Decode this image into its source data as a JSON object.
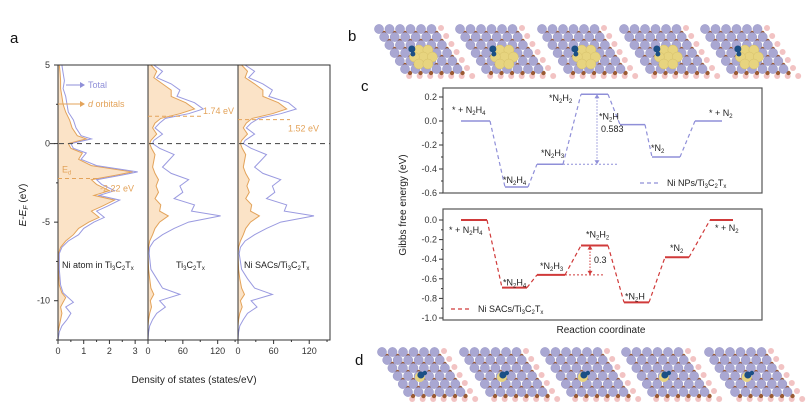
{
  "panel_letters": {
    "a": "a",
    "b": "b",
    "c": "c",
    "d": "d"
  },
  "chart_data": [
    {
      "id": "dos",
      "type": "area",
      "title": "",
      "ylabel": "E-E_F (eV)",
      "ylabel_main": "E-E",
      "ylabel_sub": "F",
      "ylabel_unit": " (eV)",
      "xlabel": "Density of states (states/eV)",
      "ylim": [
        -12.5,
        5
      ],
      "yticks": [
        5,
        0,
        -5,
        -10
      ],
      "fermi_level": 0,
      "legend": [
        {
          "name": "Total",
          "color": "#8f8fd8",
          "style": "line"
        },
        {
          "name": "d orbitals",
          "color": "#e3a35a",
          "style": "filled"
        }
      ],
      "colors": {
        "total": "#9a9ae0",
        "d_line": "#e3a35a",
        "d_fill": "#fbe3c7",
        "fermi": "#555555"
      },
      "panels": [
        {
          "name": "Ni atom in Ti3C2Tx",
          "label_parts": [
            "Ni atom in Ti",
            "3",
            "C",
            "2",
            "T",
            "x"
          ],
          "xlim": [
            0,
            3.5
          ],
          "xticks": [
            0,
            1,
            2,
            3
          ],
          "d_band_center": -2.22,
          "d_band_label": "-2.22 eV",
          "ed_label": "E",
          "ed_sub": "d",
          "energy": [
            5,
            4.5,
            4,
            3.5,
            3,
            2.5,
            2,
            1.5,
            1,
            0.5,
            0.3,
            0,
            -0.3,
            -0.6,
            -1,
            -1.4,
            -1.8,
            -2,
            -2.3,
            -2.6,
            -3,
            -3.3,
            -3.6,
            -4,
            -4.3,
            -4.7,
            -5,
            -5.4,
            -5.8,
            -6.2,
            -6.6,
            -7,
            -8,
            -9,
            -9.5,
            -9.8,
            -10.1,
            -10.4,
            -10.8,
            -11.2,
            -11.6,
            -12,
            -12.5
          ],
          "total": [
            0.15,
            0.2,
            0.25,
            0.2,
            0.3,
            0.35,
            0.4,
            0.6,
            0.7,
            0.9,
            1.3,
            0.5,
            0.6,
            1.1,
            0.9,
            1.5,
            3.1,
            2.5,
            1.5,
            1.7,
            2.2,
            1.6,
            2.4,
            1.9,
            1.5,
            1.8,
            1.4,
            1.0,
            0.8,
            0.4,
            0.15,
            0.05,
            0.05,
            0.1,
            0.2,
            0.4,
            0.6,
            0.3,
            0.5,
            0.35,
            0.15,
            0.05,
            0.0
          ],
          "d": [
            0.05,
            0.08,
            0.1,
            0.1,
            0.15,
            0.2,
            0.3,
            0.45,
            0.55,
            0.75,
            1.1,
            0.4,
            0.5,
            0.95,
            0.8,
            1.3,
            2.9,
            2.3,
            1.3,
            1.5,
            2.0,
            1.4,
            2.2,
            1.7,
            1.3,
            1.6,
            1.2,
            0.8,
            0.6,
            0.3,
            0.1,
            0.02,
            0.02,
            0.05,
            0.15,
            0.3,
            0.2,
            0.1,
            0.15,
            0.1,
            0.05,
            0.0,
            0.0
          ]
        },
        {
          "name": "Ti3C2Tx",
          "label_parts": [
            "Ti",
            "3",
            "C",
            "2",
            "T",
            "x"
          ],
          "xlim": [
            0,
            155
          ],
          "xticks": [
            0,
            60,
            120
          ],
          "d_band_center": 1.74,
          "d_band_label": "1.74 eV",
          "energy": [
            5,
            4.6,
            4.2,
            3.8,
            3.4,
            3,
            2.6,
            2.2,
            1.9,
            1.6,
            1.3,
            1,
            0.6,
            0.2,
            0,
            -0.3,
            -0.7,
            -1.1,
            -1.5,
            -1.9,
            -2.3,
            -2.7,
            -3.1,
            -3.5,
            -3.9,
            -4.3,
            -4.6,
            -5,
            -5.4,
            -5.8,
            -6.2,
            -6.6,
            -7,
            -8,
            -8.6,
            -9.2,
            -9.6,
            -10,
            -10.4,
            -10.8,
            -11.2,
            -11.6,
            -12,
            -12.5
          ],
          "total": [
            10,
            25,
            15,
            40,
            55,
            50,
            80,
            95,
            70,
            30,
            20,
            12,
            25,
            10,
            8,
            20,
            45,
            35,
            25,
            40,
            70,
            55,
            60,
            45,
            80,
            75,
            125,
            70,
            45,
            25,
            10,
            3,
            2,
            5,
            15,
            25,
            55,
            20,
            30,
            15,
            8,
            3,
            1,
            0
          ],
          "d": [
            5,
            15,
            10,
            25,
            40,
            40,
            65,
            80,
            55,
            22,
            12,
            8,
            15,
            5,
            3,
            6,
            12,
            10,
            8,
            12,
            18,
            14,
            18,
            12,
            22,
            20,
            35,
            20,
            12,
            8,
            3,
            1,
            0,
            1,
            3,
            5,
            10,
            4,
            6,
            3,
            1,
            0,
            0,
            0
          ]
        },
        {
          "name": "Ni SACs/Ti3C2Tx",
          "label_parts": [
            "Ni SACs/Ti",
            "3",
            "C",
            "2",
            "T",
            "x"
          ],
          "xlim": [
            0,
            155
          ],
          "xticks": [
            0,
            60,
            120
          ],
          "d_band_center": 1.52,
          "d_band_label": "1.52 eV",
          "energy": [
            5,
            4.6,
            4.2,
            3.8,
            3.4,
            3,
            2.6,
            2.2,
            1.9,
            1.6,
            1.3,
            1,
            0.6,
            0.2,
            0,
            -0.3,
            -0.7,
            -1.1,
            -1.5,
            -1.9,
            -2.3,
            -2.7,
            -3.1,
            -3.5,
            -3.9,
            -4.3,
            -4.6,
            -5,
            -5.4,
            -5.8,
            -6.2,
            -6.6,
            -7,
            -8,
            -8.6,
            -9.2,
            -9.6,
            -10,
            -10.4,
            -10.8,
            -11.2,
            -11.6,
            -12,
            -12.5
          ],
          "total": [
            12,
            28,
            18,
            42,
            58,
            52,
            85,
            98,
            72,
            35,
            22,
            14,
            28,
            12,
            9,
            22,
            48,
            38,
            28,
            42,
            72,
            58,
            62,
            48,
            82,
            78,
            128,
            72,
            48,
            28,
            12,
            4,
            2,
            6,
            16,
            28,
            58,
            22,
            32,
            16,
            9,
            3,
            1,
            0
          ],
          "d": [
            6,
            16,
            12,
            28,
            42,
            42,
            68,
            82,
            58,
            24,
            14,
            9,
            16,
            6,
            4,
            7,
            13,
            11,
            9,
            13,
            19,
            15,
            19,
            13,
            23,
            21,
            36,
            21,
            13,
            9,
            4,
            1,
            0,
            1,
            3,
            6,
            11,
            4,
            7,
            3,
            1,
            0,
            0,
            0
          ]
        }
      ]
    },
    {
      "id": "gibbs",
      "type": "line",
      "ylabel": "Gibbs free energy (eV)",
      "xlabel": "Reaction coordinate",
      "subplots": [
        {
          "series_name": "Ni NPs/Ti3C2Tx",
          "legend_parts": [
            "Ni NPs/Ti",
            "3",
            "C",
            "2",
            "T",
            "x"
          ],
          "legend_position": "bottom-right",
          "color": "#8f8fd8",
          "ylim": [
            -0.65,
            0.25
          ],
          "yticks": [
            0.2,
            0.0,
            -0.2,
            -0.4,
            -0.6
          ],
          "ytick_labels": [
            "0.2",
            "0.0",
            "-0.2",
            "-0.4",
            "-0.6"
          ],
          "steps": [
            {
              "label": [
                "* + N",
                "2",
                "H",
                "4"
              ],
              "value": 0.0
            },
            {
              "label": [
                "*N",
                "2",
                "H",
                "4"
              ],
              "value": -0.55
            },
            {
              "label": [
                "*N",
                "2",
                "H",
                "3"
              ],
              "value": -0.36
            },
            {
              "label": [
                "*N",
                "2",
                "H",
                "2"
              ],
              "value": 0.223
            },
            {
              "label": [
                "*N",
                "2",
                "H",
                ""
              ],
              "value": -0.03
            },
            {
              "label": [
                "*N",
                "2",
                "",
                ""
              ],
              "value": -0.3
            },
            {
              "label": [
                "* + N",
                "2",
                "",
                ""
              ],
              "value": 0.0
            }
          ],
          "barrier": {
            "from_step": 2,
            "to_step": 3,
            "value_label": "0.583"
          }
        },
        {
          "series_name": "Ni SACs/Ti3C2Tx",
          "legend_parts": [
            "Ni SACs/Ti",
            "3",
            "C",
            "2",
            "T",
            "x"
          ],
          "legend_position": "bottom-left",
          "color": "#d03a3a",
          "ylim": [
            -1.0,
            0.05
          ],
          "yticks": [
            0.0,
            -0.2,
            -0.4,
            -0.6,
            -0.8,
            -1.0
          ],
          "ytick_labels": [
            "0.0",
            "-0.2",
            "-0.4",
            "-0.6",
            "-0.8",
            "-1.0"
          ],
          "steps": [
            {
              "label": [
                "* + N",
                "2",
                "H",
                "4"
              ],
              "value": 0.0
            },
            {
              "label": [
                "*N",
                "2",
                "H",
                "4"
              ],
              "value": -0.69
            },
            {
              "label": [
                "*N",
                "2",
                "H",
                "3"
              ],
              "value": -0.56
            },
            {
              "label": [
                "*N",
                "2",
                "H",
                "2"
              ],
              "value": -0.26
            },
            {
              "label": [
                "*N",
                "2",
                "H",
                ""
              ],
              "value": -0.84
            },
            {
              "label": [
                "*N",
                "2",
                "",
                ""
              ],
              "value": -0.38
            },
            {
              "label": [
                "* + N",
                "2",
                "",
                ""
              ],
              "value": 0.0
            }
          ],
          "barrier": {
            "from_step": 2,
            "to_step": 3,
            "value_label": "0.3"
          }
        }
      ]
    }
  ],
  "structures": {
    "colors": {
      "ti": "#a9a7d2",
      "c": "#9b5a32",
      "o": "#f2c3c3",
      "charge": "#e7d47f",
      "ni": "#1b4f85"
    },
    "row_b": [
      {
        "name": "structure-b-1",
        "adsorbate": "N2H4"
      },
      {
        "name": "structure-b-2",
        "adsorbate": "N2H3"
      },
      {
        "name": "structure-b-3",
        "adsorbate": "N2H2"
      },
      {
        "name": "structure-b-4",
        "adsorbate": "N2H"
      },
      {
        "name": "structure-b-5",
        "adsorbate": "N2"
      }
    ],
    "row_d": [
      {
        "name": "structure-d-1",
        "adsorbate": "N2H4"
      },
      {
        "name": "structure-d-2",
        "adsorbate": "N2H3"
      },
      {
        "name": "structure-d-3",
        "adsorbate": "N2H2"
      },
      {
        "name": "structure-d-4",
        "adsorbate": "N2H"
      },
      {
        "name": "structure-d-5",
        "adsorbate": "N2"
      }
    ]
  }
}
